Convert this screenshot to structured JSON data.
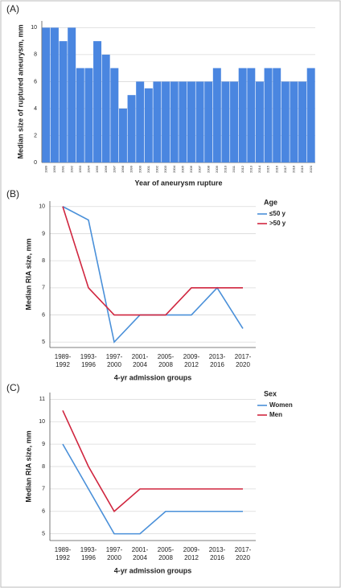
{
  "chart_data": [
    {
      "type": "bar",
      "panel": "(A)",
      "y_label": "Median size of ruptured aneurysm, mm",
      "x_label": "Year of aneurysm rupture",
      "categories": [
        "1989",
        "1990",
        "1991",
        "1992",
        "1993",
        "1994",
        "1995",
        "1996",
        "1997",
        "1998",
        "1999",
        "2000",
        "2001",
        "2002",
        "2003",
        "2004",
        "2005",
        "2006",
        "2007",
        "2008",
        "2009",
        "2010",
        "2011",
        "2012",
        "2013",
        "2014",
        "2015",
        "2016",
        "2017",
        "2018",
        "2019",
        "2020"
      ],
      "values": [
        10,
        10,
        9,
        10,
        7,
        7,
        9,
        8,
        7,
        4,
        5,
        6,
        5.5,
        6,
        6,
        6,
        6,
        6,
        6,
        6,
        7,
        6,
        6,
        7,
        7,
        6,
        7,
        7,
        6,
        6,
        6,
        7
      ],
      "color": "#4a86e0",
      "ylim": [
        0,
        10.5
      ],
      "yticks": [
        0,
        2,
        4,
        6,
        8,
        10
      ],
      "grid": true
    },
    {
      "type": "line",
      "panel": "(B)",
      "y_label": "Median RIA size, mm",
      "x_label": "4-yr admission groups",
      "legend_title": "Age",
      "categories": [
        "1989-1992",
        "1993-1996",
        "1997-2000",
        "2001-2004",
        "2005-2008",
        "2009-2012",
        "2013-2016",
        "2017-2020"
      ],
      "series": [
        {
          "name": "≤50 y",
          "color": "#4a90d9",
          "values": [
            10,
            9.5,
            5,
            6,
            6,
            6,
            7,
            5.5
          ]
        },
        {
          "name": ">50 y",
          "color": "#d0263f",
          "values": [
            10,
            7,
            6,
            6,
            6,
            7,
            7,
            7
          ]
        }
      ],
      "ylim": [
        4.8,
        10.2
      ],
      "yticks": [
        5,
        6,
        7,
        8,
        9,
        10
      ],
      "grid": true
    },
    {
      "type": "line",
      "panel": "(C)",
      "y_label": "Median RIA size, mm",
      "x_label": "4-yr admission groups",
      "legend_title": "Sex",
      "categories": [
        "1989-1992",
        "1993-1996",
        "1997-2000",
        "2001-2004",
        "2005-2008",
        "2009-2012",
        "2013-2016",
        "2017-2020"
      ],
      "series": [
        {
          "name": "Women",
          "color": "#4a90d9",
          "values": [
            9,
            7,
            5,
            5,
            6,
            6,
            6,
            6
          ]
        },
        {
          "name": "Men",
          "color": "#d0263f",
          "values": [
            10.5,
            8,
            6,
            7,
            7,
            7,
            7,
            7
          ]
        }
      ],
      "ylim": [
        4.7,
        11.3
      ],
      "yticks": [
        5,
        6,
        7,
        8,
        9,
        10,
        11
      ],
      "grid": true
    }
  ]
}
